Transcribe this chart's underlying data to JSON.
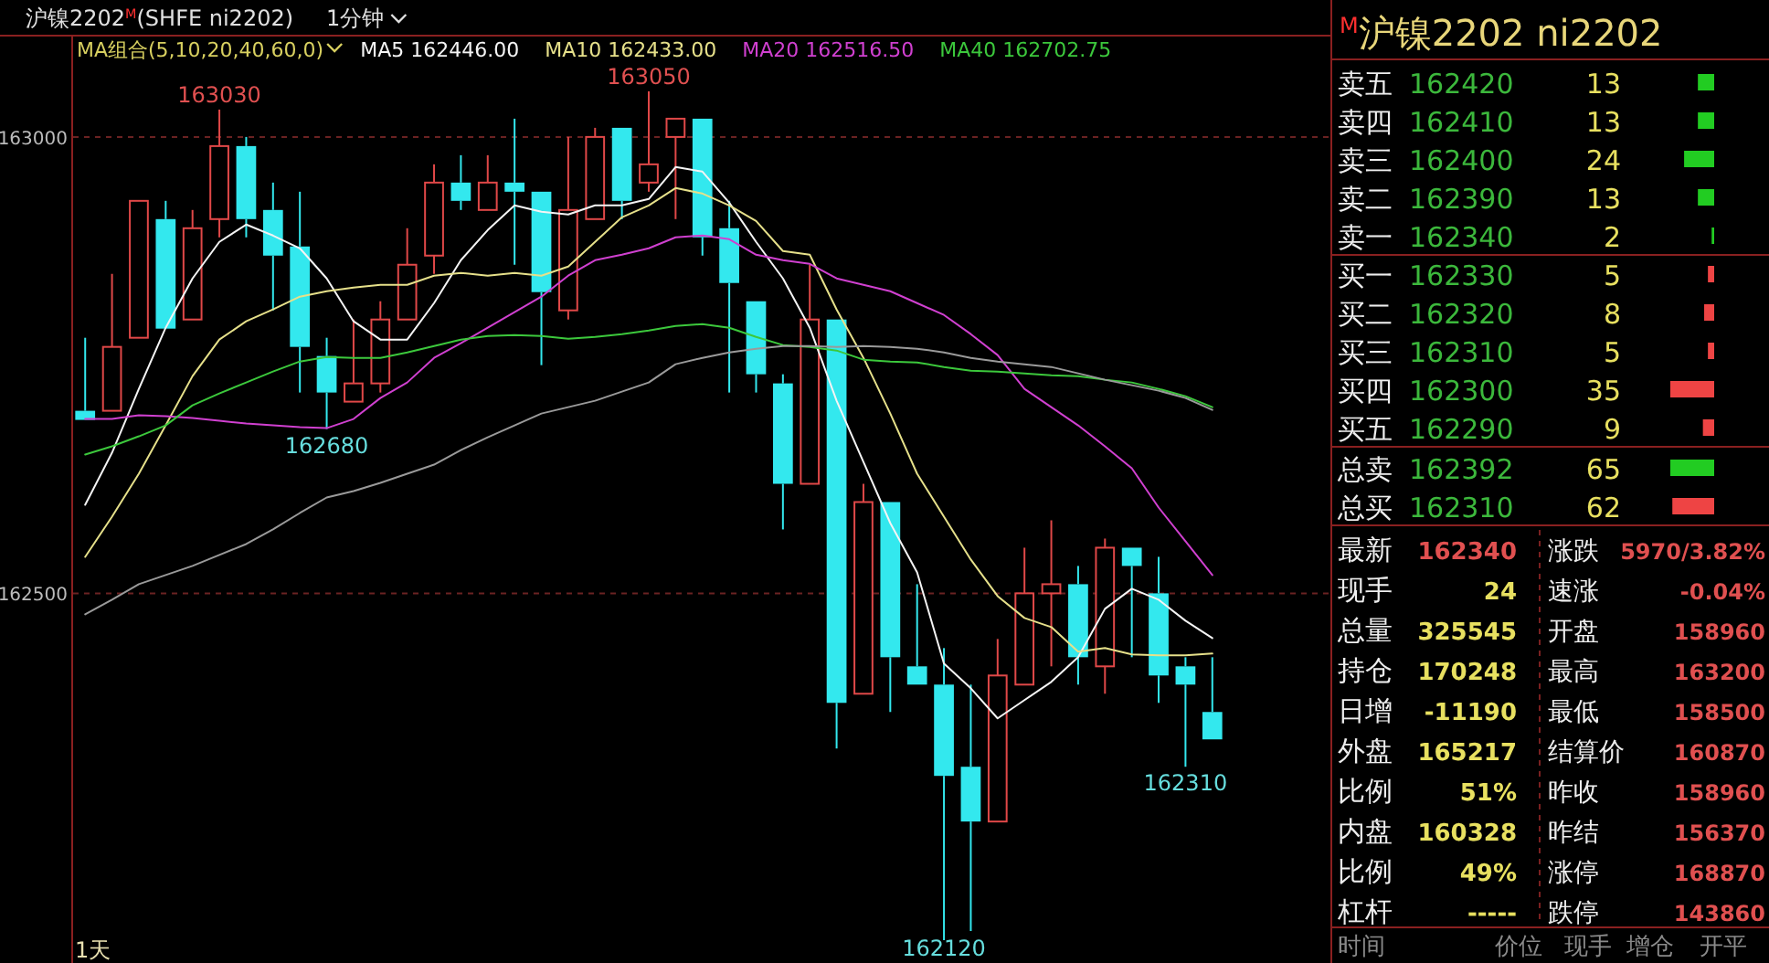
{
  "chart_data": [
    {
      "type": "candlestick",
      "title": "沪镍2202$^{M}$(SHFE ni2202)",
      "subtitle": "1分钟",
      "legend_title": "MA组合(5,10,20,40,60,0)",
      "legend": "top",
      "grid": "y",
      "categories": [
        null,
        null,
        null,
        null,
        null,
        null,
        null,
        null,
        null,
        null,
        null,
        null,
        null,
        null,
        null,
        null,
        null,
        null,
        null,
        null,
        null,
        null,
        null,
        null,
        null,
        null,
        null,
        null,
        null,
        null,
        null,
        null,
        null,
        null,
        null,
        null,
        null,
        null,
        null,
        null,
        null,
        null,
        null
      ],
      "ohlc": [
        [
          162700,
          162780,
          162690,
          162690
        ],
        [
          162700,
          162850,
          162700,
          162770
        ],
        [
          162780,
          162930,
          162780,
          162930
        ],
        [
          162910,
          162930,
          162790,
          162790
        ],
        [
          162800,
          162920,
          162800,
          162900
        ],
        [
          162910,
          163030,
          162890,
          162990
        ],
        [
          162990,
          163000,
          162890,
          162910
        ],
        [
          162920,
          162950,
          162810,
          162870
        ],
        [
          162880,
          162940,
          162720,
          162770
        ],
        [
          162760,
          162780,
          162680,
          162720
        ],
        [
          162710,
          162800,
          162710,
          162730
        ],
        [
          162730,
          162820,
          162720,
          162800
        ],
        [
          162800,
          162900,
          162800,
          162860
        ],
        [
          162870,
          162970,
          162850,
          162950
        ],
        [
          162950,
          162980,
          162920,
          162930
        ],
        [
          162920,
          162980,
          162920,
          162950
        ],
        [
          162950,
          163020,
          162860,
          162940
        ],
        [
          162940,
          162940,
          162750,
          162830
        ],
        [
          162810,
          163000,
          162800,
          162920
        ],
        [
          162910,
          163010,
          162910,
          163000
        ],
        [
          163010,
          163010,
          162910,
          162930
        ],
        [
          162950,
          163050,
          162940,
          162970
        ],
        [
          163000,
          163020,
          162910,
          163020
        ],
        [
          163020,
          163020,
          162870,
          162890
        ],
        [
          162900,
          162930,
          162720,
          162840
        ],
        [
          162820,
          162820,
          162720,
          162740
        ],
        [
          162730,
          162740,
          162570,
          162620
        ],
        [
          162620,
          162860,
          162620,
          162800
        ],
        [
          162800,
          162800,
          162330,
          162380
        ],
        [
          162390,
          162620,
          162390,
          162600
        ],
        [
          162600,
          162600,
          162370,
          162430
        ],
        [
          162420,
          162510,
          162400,
          162400
        ],
        [
          162400,
          162440,
          162120,
          162300
        ],
        [
          162310,
          162400,
          162130,
          162250
        ],
        [
          162250,
          162450,
          162250,
          162410
        ],
        [
          162400,
          162550,
          162400,
          162500
        ],
        [
          162500,
          162580,
          162420,
          162510
        ],
        [
          162510,
          162530,
          162400,
          162430
        ],
        [
          162420,
          162560,
          162390,
          162550
        ],
        [
          162550,
          162550,
          162430,
          162530
        ],
        [
          162500,
          162540,
          162380,
          162410
        ],
        [
          162420,
          162430,
          162310,
          162400
        ],
        [
          162370,
          162430,
          162340,
          162340
        ]
      ],
      "colors": [
        "#33e8ee",
        "#e04848",
        "#e04848",
        "#33e8ee",
        "#e04848",
        "#e04848",
        "#33e8ee",
        "#33e8ee",
        "#33e8ee",
        "#33e8ee",
        "#e04848",
        "#e04848",
        "#e04848",
        "#e04848",
        "#33e8ee",
        "#e04848",
        "#33e8ee",
        "#33e8ee",
        "#e04848",
        "#e04848",
        "#33e8ee",
        "#e04848",
        "#e04848",
        "#33e8ee",
        "#33e8ee",
        "#33e8ee",
        "#33e8ee",
        "#e04848",
        "#33e8ee",
        "#e04848",
        "#33e8ee",
        "#33e8ee",
        "#33e8ee",
        "#33e8ee",
        "#e04848",
        "#e04848",
        "#e04848",
        "#33e8ee",
        "#e04848",
        "#33e8ee",
        "#33e8ee",
        "#33e8ee",
        "#33e8ee"
      ],
      "series": [
        {
          "name": "MA5 162446.00",
          "type": "line",
          "color": "#f4f4f4",
          "values": [
            162597,
            162654,
            162724,
            162791,
            162845,
            162885,
            162904,
            162892,
            162878,
            162845,
            162798,
            162778,
            162778,
            162818,
            162865,
            162898,
            162925,
            162918,
            162915,
            162925,
            162925,
            162932,
            162967,
            162962,
            162928,
            162885,
            162845,
            162791,
            162711,
            162644,
            162577,
            162523,
            162423,
            162396,
            162363,
            162383,
            162403,
            162430,
            162483,
            162505,
            162493,
            162470,
            162451
          ]
        },
        {
          "name": "MA10 162433.00",
          "type": "line",
          "color": "#e6e08a",
          "values": [
            162540,
            162584,
            162631,
            162684,
            162738,
            162778,
            162798,
            162811,
            162825,
            162831,
            162835,
            162838,
            162838,
            162848,
            162851,
            162848,
            162851,
            162848,
            162858,
            162885,
            162912,
            162925,
            162944,
            162938,
            162925,
            162908,
            162875,
            162871,
            162811,
            162758,
            162697,
            162631,
            162584,
            162537,
            162497,
            162473,
            162463,
            162436,
            162440,
            162433,
            162432,
            162432,
            162434
          ]
        },
        {
          "name": "MA20 162516.50",
          "type": "line",
          "color": "#d040d0",
          "values": [
            162691,
            162691,
            162695,
            162694,
            162692,
            162689,
            162686,
            162684,
            162682,
            162681,
            162691,
            162714,
            162731,
            162758,
            162774,
            162791,
            162808,
            162825,
            162848,
            162865,
            162871,
            162878,
            162890,
            162892,
            162888,
            162871,
            162865,
            162861,
            162845,
            162838,
            162831,
            162818,
            162805,
            162784,
            162761,
            162724,
            162704,
            162684,
            162661,
            162637,
            162594,
            162557,
            162520
          ]
        },
        {
          "name": "MA40 162702.75",
          "type": "line",
          "color": "#3cc83c",
          "values": [
            162652,
            162661,
            162672,
            162684,
            162706,
            162719,
            162731,
            162743,
            162754,
            162759,
            162758,
            162758,
            162764,
            162771,
            162778,
            162782,
            162783,
            162782,
            162779,
            162781,
            162784,
            162788,
            162793,
            162795,
            162791,
            162781,
            162772,
            162770,
            162766,
            162756,
            162754,
            162753,
            162748,
            162744,
            162743,
            162741,
            162739,
            162738,
            162734,
            162731,
            162724,
            162716,
            162704
          ]
        },
        {
          "type": "line",
          "color": "#9a9a9a",
          "values": [
            162477,
            162493,
            162510,
            162520,
            162530,
            162542,
            162554,
            162570,
            162588,
            162605,
            162612,
            162621,
            162631,
            162641,
            162657,
            162671,
            162684,
            162697,
            162704,
            162711,
            162721,
            162731,
            162751,
            162758,
            162764,
            162768,
            162771,
            162771,
            162770,
            162771,
            162770,
            162768,
            162764,
            162758,
            162754,
            162751,
            162748,
            162741,
            162734,
            162728,
            162722,
            162714,
            162701
          ]
        }
      ],
      "ylim": [
        162095,
        163110
      ],
      "yticks": [
        162500,
        163000
      ],
      "annotations": [
        {
          "text": "163030",
          "y": 163030
        },
        {
          "text": "163050",
          "y": 163050
        },
        {
          "text": "162680",
          "y": 162680
        },
        {
          "text": "162120",
          "y": 162120
        },
        {
          "text": "162310",
          "y": 162310
        },
        "1天"
      ]
    },
    {
      "type": "bar",
      "orientation": "horizontal",
      "title": "$^{M}$沪镍2202 ni2202",
      "data_labels": true,
      "categories": [
        "卖五",
        "卖四",
        "卖三",
        "卖二",
        "卖一",
        "买一",
        "买二",
        "买三",
        "买四",
        "买五"
      ],
      "values": [
        13,
        13,
        24,
        13,
        2,
        5,
        8,
        5,
        35,
        9
      ],
      "colors": [
        "#22cc22",
        "#22cc22",
        "#22cc22",
        "#22cc22",
        "#22cc22",
        "#ee4444",
        "#ee4444",
        "#ee4444",
        "#ee4444",
        "#ee4444"
      ],
      "annotations": [
        "162420",
        "162410",
        "162400",
        "162390",
        "162340",
        "162330",
        "162320",
        "162310",
        "162300",
        "162290"
      ]
    },
    {
      "type": "bar",
      "orientation": "horizontal",
      "data_labels": true,
      "categories": [
        "总卖",
        "总买"
      ],
      "values": [
        65,
        62
      ],
      "colors": [
        "#22cc22",
        "#ee4444"
      ],
      "annotations": [
        "162392",
        "162310"
      ]
    },
    {
      "type": "other",
      "annotations": [
        "最新",
        "162340",
        "涨跌",
        "5970/3.82%",
        "现手",
        "24",
        "速涨",
        "-0.04%",
        "总量",
        "325545",
        "开盘",
        "158960",
        "持仓",
        "170248",
        "最高",
        "163200",
        "日增",
        "-11190",
        "最低",
        "158500",
        "外盘",
        "165217",
        "结算价",
        "160870",
        "比例",
        "51%",
        "昨收",
        "158960",
        "内盘",
        "160328",
        "昨结",
        "156370",
        "比例",
        "49%",
        "涨停",
        "168870",
        "杠杆",
        "-----",
        "跌停",
        "143860"
      ]
    },
    {
      "type": "other",
      "annotations": [
        "时间",
        "价位",
        "现手",
        "增仓",
        "开平"
      ]
    }
  ]
}
